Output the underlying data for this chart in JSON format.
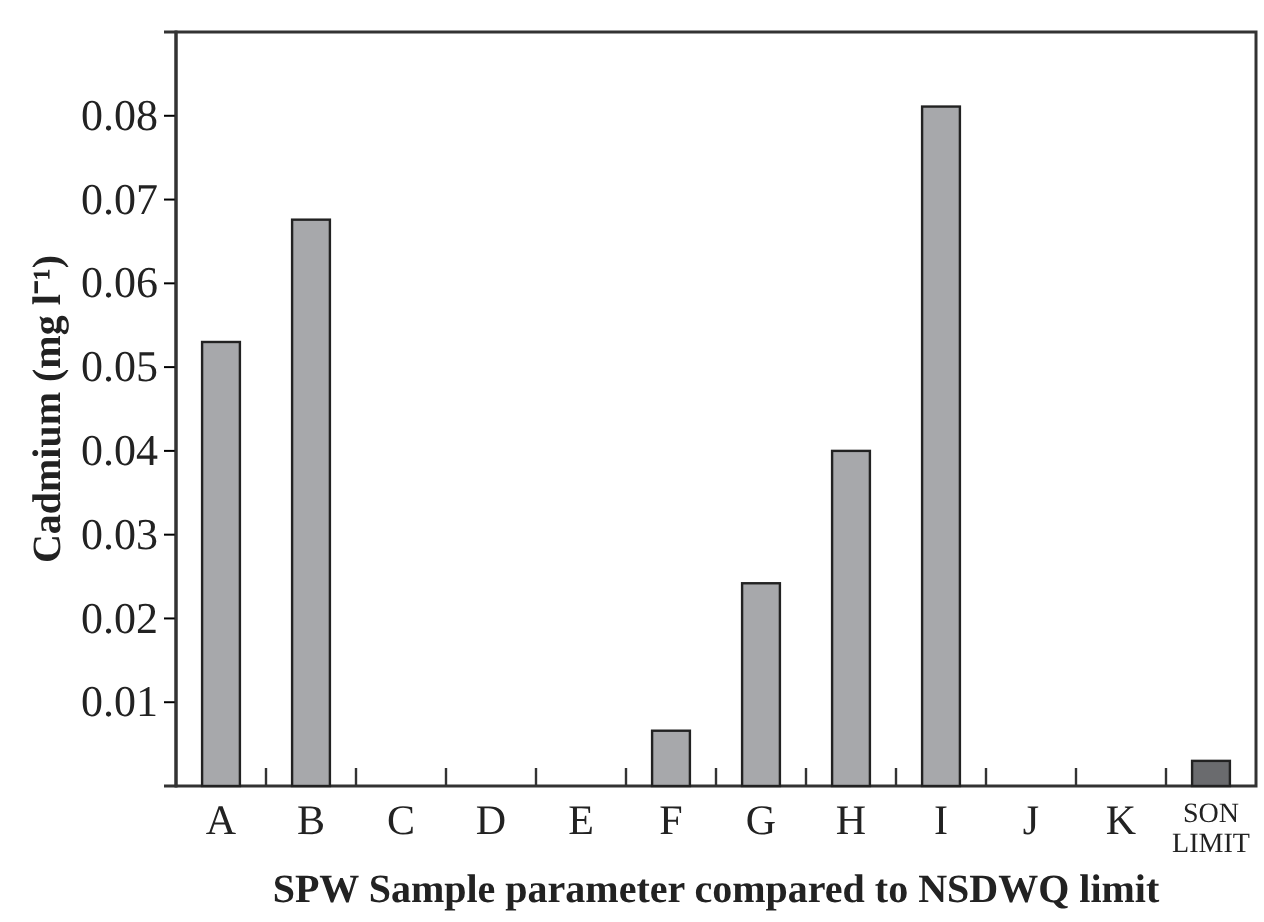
{
  "chart_data": {
    "type": "bar",
    "xlabel": "SPW Sample parameter compared to NSDWQ limit",
    "ylabel": "Cadmium (mg l⁻¹)",
    "categories": [
      "A",
      "B",
      "C",
      "D",
      "E",
      "F",
      "G",
      "H",
      "I",
      "J",
      "K",
      "SON LIMIT"
    ],
    "values": [
      0.053,
      0.0676,
      0,
      0,
      0,
      0.0066,
      0.0242,
      0.04,
      0.0811,
      0,
      0,
      0.003
    ],
    "colors": [
      "#a7a8ab",
      "#a7a8ab",
      "#a7a8ab",
      "#a7a8ab",
      "#a7a8ab",
      "#a7a8ab",
      "#a7a8ab",
      "#a7a8ab",
      "#a7a8ab",
      "#a7a8ab",
      "#a7a8ab",
      "#6a6b6e"
    ],
    "ylim": [
      0,
      0.09
    ],
    "yticks": [
      0.01,
      0.02,
      0.03,
      0.04,
      0.05,
      0.06,
      0.07,
      0.08
    ],
    "grid": false
  }
}
